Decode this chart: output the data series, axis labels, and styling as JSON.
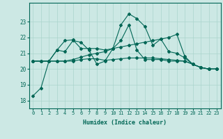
{
  "title": "",
  "xlabel": "Humidex (Indice chaleur)",
  "ylabel": "",
  "background_color": "#cce8e4",
  "grid_color": "#aad4cc",
  "line_color": "#006655",
  "x": [
    0,
    1,
    2,
    3,
    4,
    5,
    6,
    7,
    8,
    9,
    10,
    11,
    12,
    13,
    14,
    15,
    16,
    17,
    18,
    19,
    20,
    21,
    22,
    23
  ],
  "lines": [
    [
      18.3,
      18.8,
      20.5,
      21.2,
      21.1,
      21.8,
      21.7,
      21.2,
      20.3,
      20.5,
      21.3,
      22.8,
      23.5,
      23.2,
      22.7,
      21.5,
      21.9,
      21.1,
      21.0,
      20.7,
      20.3,
      20.1,
      20.0,
      20.0
    ],
    [
      20.5,
      20.5,
      20.5,
      21.2,
      21.8,
      21.85,
      21.3,
      21.3,
      21.3,
      21.2,
      21.3,
      21.8,
      22.8,
      21.2,
      20.6,
      20.6,
      20.6,
      20.5,
      20.5,
      20.5,
      20.3,
      20.1,
      20.0,
      20.0
    ],
    [
      20.5,
      20.5,
      20.5,
      20.5,
      20.5,
      20.5,
      20.6,
      20.65,
      20.65,
      20.55,
      20.6,
      20.65,
      20.7,
      20.7,
      20.7,
      20.7,
      20.65,
      20.6,
      20.55,
      20.5,
      20.3,
      20.1,
      20.0,
      20.0
    ],
    [
      20.5,
      20.5,
      20.5,
      20.5,
      20.5,
      20.6,
      20.75,
      20.9,
      21.0,
      21.1,
      21.3,
      21.4,
      21.5,
      21.6,
      21.7,
      21.8,
      21.9,
      22.0,
      22.2,
      20.8,
      20.3,
      20.1,
      20.0,
      20.0
    ]
  ],
  "ylim": [
    17.5,
    24.2
  ],
  "yticks": [
    18,
    19,
    20,
    21,
    22,
    23
  ],
  "xticks": [
    0,
    1,
    2,
    3,
    4,
    5,
    6,
    7,
    8,
    9,
    10,
    11,
    12,
    13,
    14,
    15,
    16,
    17,
    18,
    19,
    20,
    21,
    22,
    23
  ]
}
